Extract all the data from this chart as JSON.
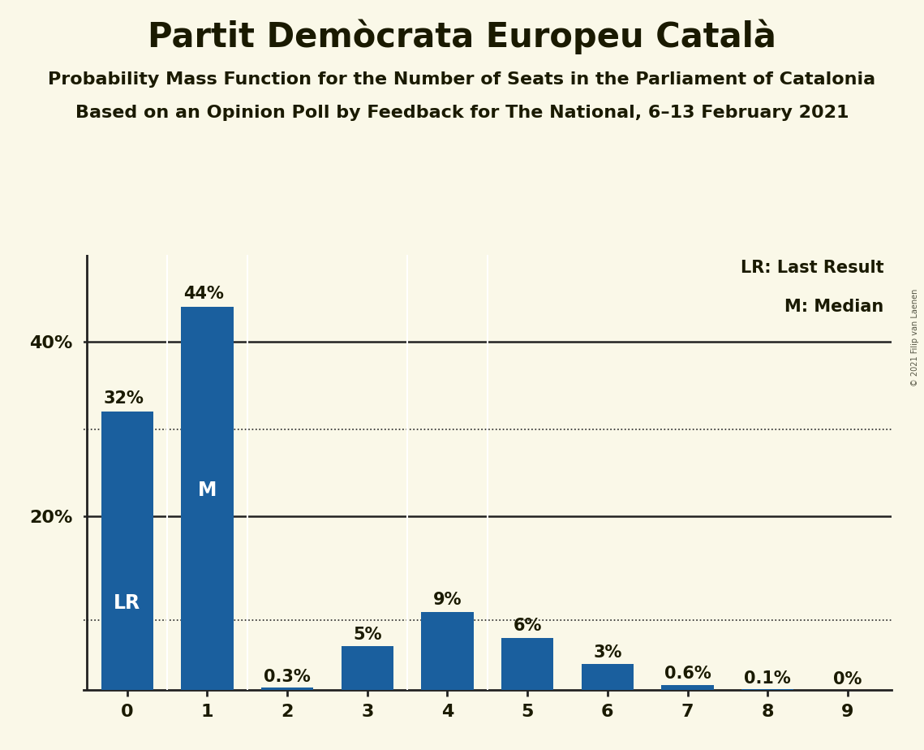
{
  "title": "Partit Demòcrata Europeu Català",
  "subtitle1": "Probability Mass Function for the Number of Seats in the Parliament of Catalonia",
  "subtitle2": "Based on an Opinion Poll by Feedback for The National, 6–13 February 2021",
  "copyright": "© 2021 Filip van Laenen",
  "categories": [
    0,
    1,
    2,
    3,
    4,
    5,
    6,
    7,
    8,
    9
  ],
  "values": [
    32,
    44,
    0.3,
    5,
    9,
    6,
    3,
    0.6,
    0.1,
    0
  ],
  "labels": [
    "32%",
    "44%",
    "0.3%",
    "5%",
    "9%",
    "6%",
    "3%",
    "0.6%",
    "0.1%",
    "0%"
  ],
  "bar_color": "#1a5f9e",
  "background_color": "#faf8e8",
  "text_color": "#1a1a00",
  "label_color_inside": "#ffffff",
  "label_color_outside": "#1a1a00",
  "lr_bar": 0,
  "median_bar": 1,
  "lr_label": "LR",
  "median_label": "M",
  "legend_lr": "LR: Last Result",
  "legend_m": "M: Median",
  "dotted_lines": [
    30,
    8
  ],
  "solid_lines": [
    20,
    40
  ],
  "ylim": [
    0,
    50
  ],
  "title_fontsize": 30,
  "subtitle_fontsize": 16,
  "bar_width": 0.65
}
